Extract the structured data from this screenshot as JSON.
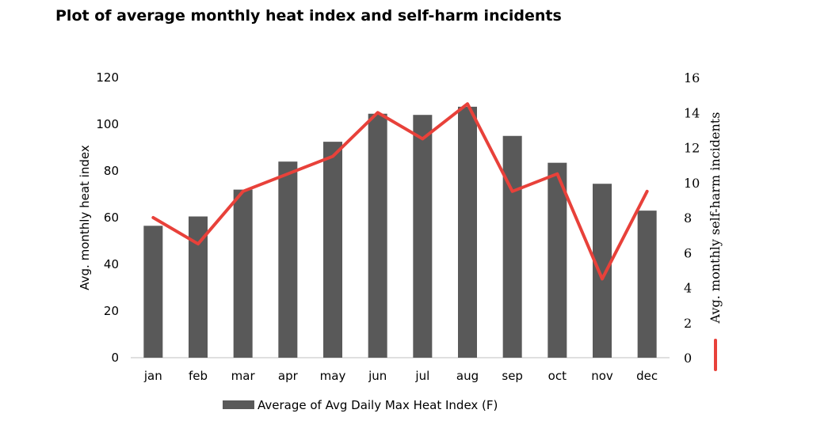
{
  "chart_data": {
    "type": "bar",
    "title": "Plot of average monthly heat index and self-harm incidents",
    "categories": [
      "jan",
      "feb",
      "mar",
      "apr",
      "may",
      "jun",
      "jul",
      "aug",
      "sep",
      "oct",
      "nov",
      "dec"
    ],
    "series": [
      {
        "name": "Average of Avg Daily Max Heat Index (F)",
        "type": "bar",
        "axis": "left",
        "color": "#595959",
        "values": [
          56.5,
          60.5,
          72,
          84,
          92.5,
          104.5,
          104,
          107.5,
          95,
          83.5,
          74.5,
          63
        ]
      },
      {
        "name": "Avg. monthly self-harm incidents",
        "type": "line",
        "axis": "right",
        "color": "#e8413a",
        "values": [
          8,
          6.5,
          9.5,
          10.5,
          11.5,
          14,
          12.5,
          14.5,
          9.5,
          10.5,
          4.5,
          9.5
        ]
      }
    ],
    "ylabel": "Avg. monthly heat index",
    "ylim": [
      0,
      120
    ],
    "yticks": [
      "0",
      "20",
      "40",
      "60",
      "80",
      "100",
      "120"
    ],
    "y2label": "Avg. monthly self-harm incidents",
    "y2lim": [
      0,
      16
    ],
    "y2ticks": [
      "0",
      "2",
      "4",
      "6",
      "8",
      "10",
      "12",
      "14",
      "16"
    ],
    "legend": [
      "Average of Avg Daily Max Heat Index (F)"
    ],
    "legend_position": "bottom"
  }
}
